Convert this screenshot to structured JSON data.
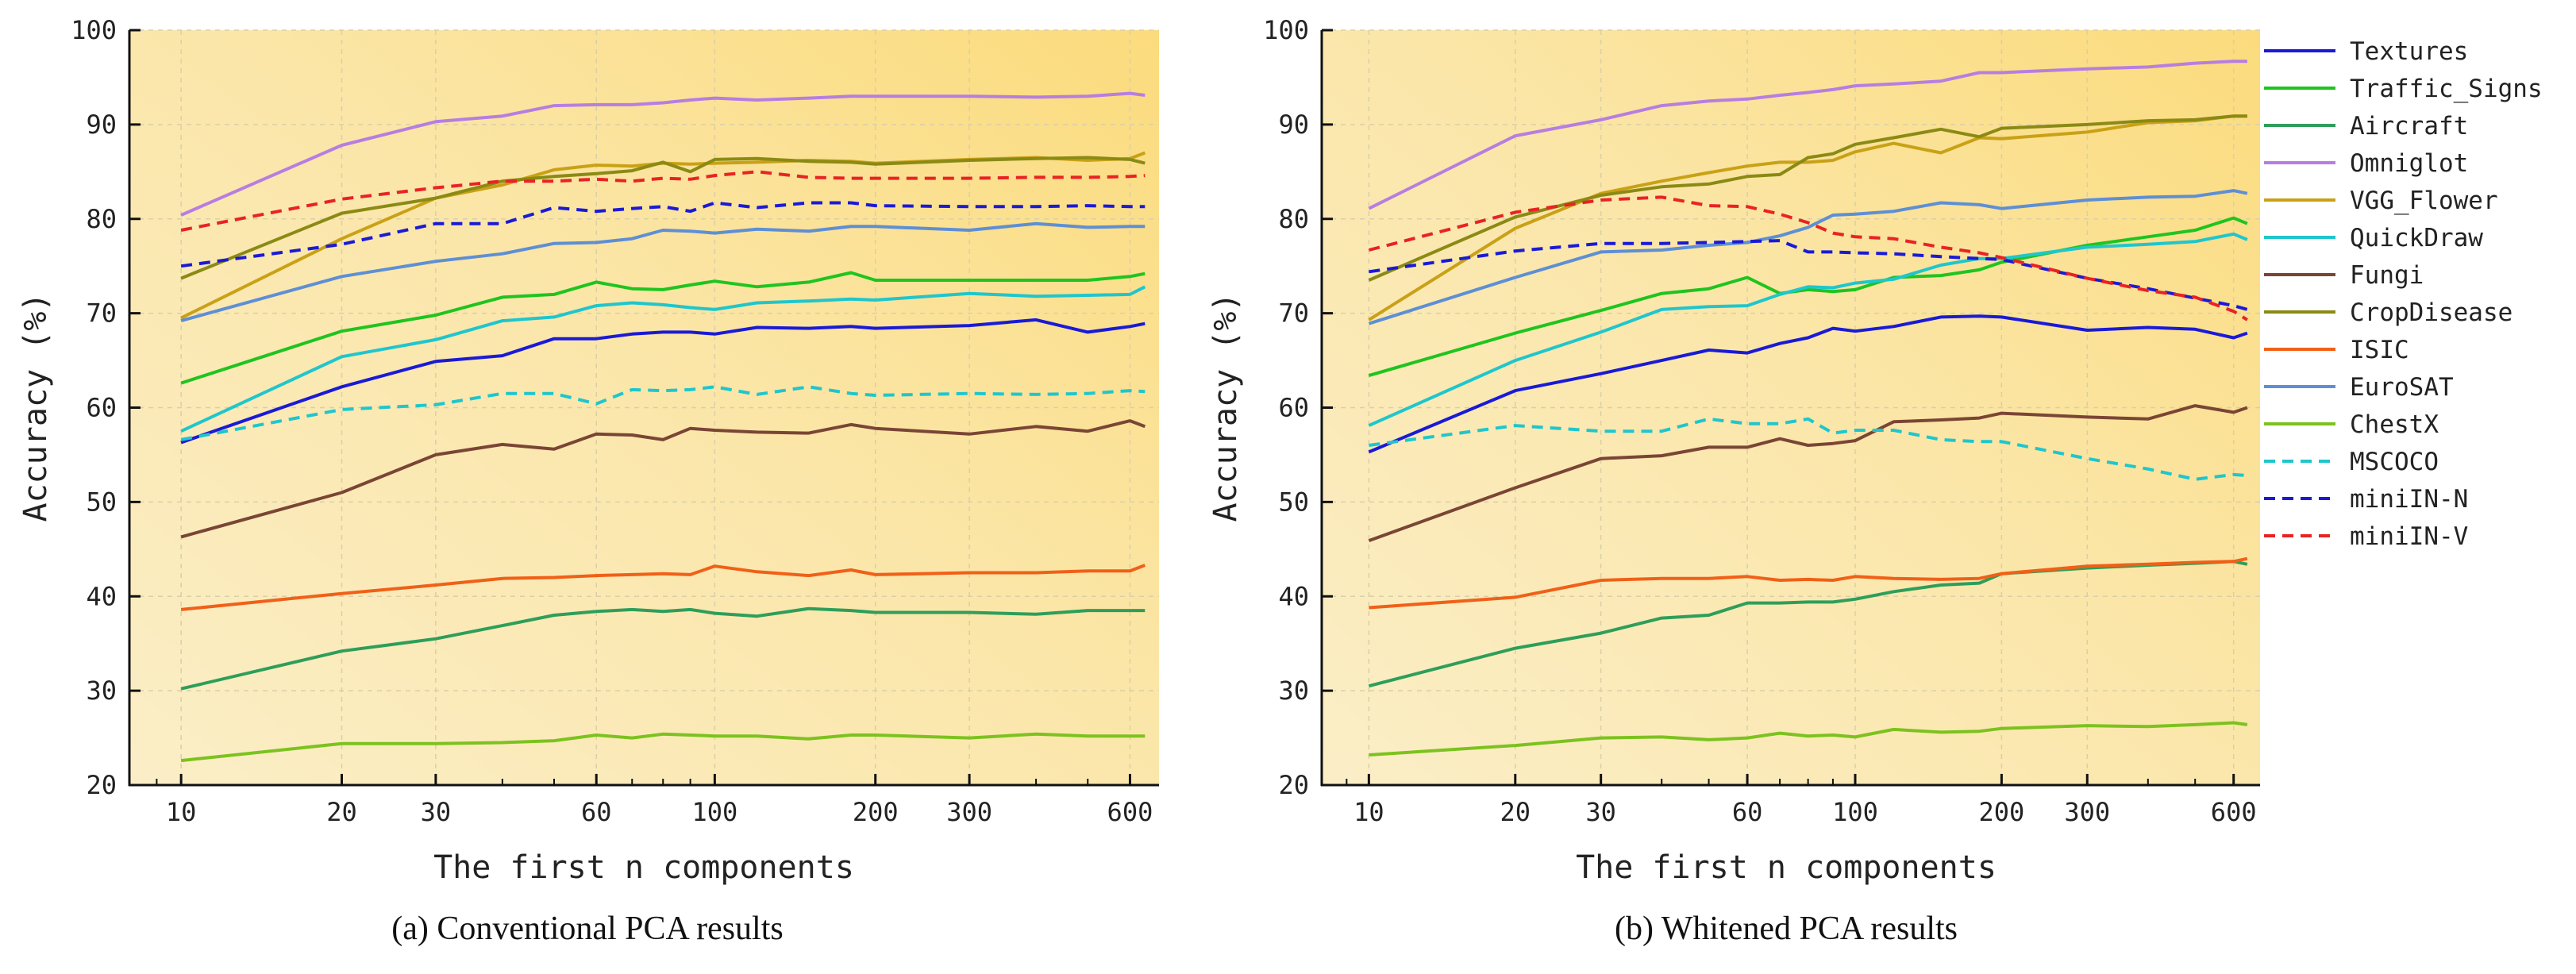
{
  "chart_data": [
    {
      "type": "line",
      "title": "(a) Conventional PCA results",
      "xlabel": "The first n components",
      "ylabel": "Accuracy (%)",
      "xscale": "log",
      "xlim": [
        8,
        680
      ],
      "ylim": [
        20,
        100
      ],
      "xticks": [
        10,
        20,
        30,
        60,
        100,
        200,
        300,
        600
      ],
      "yticks": [
        20,
        30,
        40,
        50,
        60,
        70,
        80,
        90,
        100
      ],
      "grid": true,
      "x": [
        10,
        20,
        30,
        40,
        50,
        60,
        70,
        80,
        90,
        100,
        120,
        150,
        180,
        200,
        300,
        400,
        500,
        600,
        640
      ],
      "series": [
        {
          "name": "Textures",
          "color": "#1a1ad6",
          "dashed": false,
          "values": [
            56.3,
            62.2,
            64.9,
            65.5,
            67.3,
            67.3,
            67.8,
            68,
            68,
            67.8,
            68.5,
            68.4,
            68.6,
            68.4,
            68.7,
            69.3,
            68,
            68.6,
            68.9
          ]
        },
        {
          "name": "Traffic_Signs",
          "color": "#1fc41f",
          "dashed": false,
          "values": [
            62.6,
            68.1,
            69.8,
            71.7,
            72,
            73.3,
            72.6,
            72.5,
            73,
            73.4,
            72.8,
            73.3,
            74.3,
            73.5,
            73.5,
            73.5,
            73.5,
            73.9,
            74.2
          ]
        },
        {
          "name": "Aircraft",
          "color": "#2e9e5a",
          "dashed": false,
          "values": [
            30.2,
            34.2,
            35.5,
            36.9,
            38,
            38.4,
            38.6,
            38.4,
            38.6,
            38.2,
            37.9,
            38.7,
            38.5,
            38.3,
            38.3,
            38.1,
            38.5,
            38.5,
            38.5
          ]
        },
        {
          "name": "Omniglot",
          "color": "#b77ee0",
          "dashed": false,
          "values": [
            80.4,
            87.8,
            90.3,
            90.9,
            92,
            92.1,
            92.1,
            92.3,
            92.6,
            92.8,
            92.6,
            92.8,
            93,
            93,
            93,
            92.9,
            93,
            93.3,
            93.1
          ]
        },
        {
          "name": "VGG_Flower",
          "color": "#c9a116",
          "dashed": false,
          "values": [
            69.5,
            77.9,
            82.2,
            83.6,
            85.2,
            85.7,
            85.6,
            85.9,
            85.8,
            85.9,
            86,
            86.2,
            86.1,
            85.9,
            86.3,
            86.5,
            86.2,
            86.4,
            87
          ]
        },
        {
          "name": "QuickDraw",
          "color": "#1fc6cc",
          "dashed": false,
          "values": [
            57.5,
            65.4,
            67.2,
            69.2,
            69.6,
            70.8,
            71.1,
            70.9,
            70.6,
            70.4,
            71.1,
            71.3,
            71.5,
            71.4,
            72.1,
            71.8,
            71.9,
            72,
            72.8
          ]
        },
        {
          "name": "Fungi",
          "color": "#7a4535",
          "dashed": false,
          "values": [
            46.3,
            51,
            55,
            56.1,
            55.6,
            57.2,
            57.1,
            56.6,
            57.8,
            57.6,
            57.4,
            57.3,
            58.2,
            57.8,
            57.2,
            58,
            57.5,
            58.6,
            58
          ]
        },
        {
          "name": "CropDisease",
          "color": "#8a8a14",
          "dashed": false,
          "values": [
            73.7,
            80.6,
            82.2,
            84,
            84.5,
            84.8,
            85.1,
            86,
            85,
            86.3,
            86.4,
            86.1,
            86,
            85.8,
            86.2,
            86.4,
            86.5,
            86.3,
            85.9
          ]
        },
        {
          "name": "ISIC",
          "color": "#f06018",
          "dashed": false,
          "values": [
            38.6,
            40.3,
            41.2,
            41.9,
            42,
            42.2,
            42.3,
            42.4,
            42.3,
            43.2,
            42.6,
            42.2,
            42.8,
            42.3,
            42.5,
            42.5,
            42.7,
            42.7,
            43.3
          ]
        },
        {
          "name": "EuroSAT",
          "color": "#5e8fd4",
          "dashed": false,
          "values": [
            69.2,
            73.9,
            75.5,
            76.3,
            77.4,
            77.5,
            77.9,
            78.8,
            78.7,
            78.5,
            78.9,
            78.7,
            79.2,
            79.2,
            78.8,
            79.5,
            79.1,
            79.2,
            79.2
          ]
        },
        {
          "name": "ChestX",
          "color": "#7cc21f",
          "dashed": false,
          "values": [
            22.6,
            24.4,
            24.4,
            24.5,
            24.7,
            25.3,
            25,
            25.4,
            25.3,
            25.2,
            25.2,
            24.9,
            25.3,
            25.3,
            25,
            25.4,
            25.2,
            25.2,
            25.2
          ]
        },
        {
          "name": "MSCOCO",
          "color": "#1fc6cc",
          "dashed": true,
          "values": [
            56.6,
            59.8,
            60.3,
            61.5,
            61.5,
            60.4,
            61.9,
            61.8,
            61.9,
            62.2,
            61.4,
            62.2,
            61.5,
            61.3,
            61.5,
            61.4,
            61.5,
            61.8,
            61.7
          ]
        },
        {
          "name": "miniIN-N",
          "color": "#1a1ad6",
          "dashed": true,
          "values": [
            75,
            77.3,
            79.5,
            79.5,
            81.2,
            80.8,
            81.1,
            81.3,
            80.8,
            81.7,
            81.2,
            81.7,
            81.7,
            81.4,
            81.3,
            81.3,
            81.4,
            81.3,
            81.3
          ]
        },
        {
          "name": "miniIN-V",
          "color": "#e82323",
          "dashed": true,
          "values": [
            78.8,
            82.1,
            83.3,
            84,
            84,
            84.2,
            84,
            84.3,
            84.2,
            84.6,
            85,
            84.4,
            84.3,
            84.3,
            84.3,
            84.4,
            84.4,
            84.5,
            84.6
          ]
        }
      ]
    },
    {
      "type": "line",
      "title": "(b) Whitened PCA results",
      "xlabel": "The first n components",
      "ylabel": "Accuracy (%)",
      "xscale": "log",
      "xlim": [
        8,
        680
      ],
      "ylim": [
        20,
        100
      ],
      "xticks": [
        10,
        20,
        30,
        60,
        100,
        200,
        300,
        600
      ],
      "yticks": [
        20,
        30,
        40,
        50,
        60,
        70,
        80,
        90,
        100
      ],
      "grid": true,
      "x": [
        10,
        20,
        30,
        40,
        50,
        60,
        70,
        80,
        90,
        100,
        120,
        150,
        180,
        200,
        300,
        400,
        500,
        600,
        640
      ],
      "series": [
        {
          "name": "Textures",
          "color": "#1a1ad6",
          "dashed": false,
          "values": [
            55.3,
            61.8,
            63.6,
            65,
            66.1,
            65.8,
            66.8,
            67.4,
            68.4,
            68.1,
            68.6,
            69.6,
            69.7,
            69.6,
            68.2,
            68.5,
            68.3,
            67.4,
            67.9
          ]
        },
        {
          "name": "Traffic_Signs",
          "color": "#1fc41f",
          "dashed": false,
          "values": [
            63.4,
            67.9,
            70.3,
            72.1,
            72.6,
            73.8,
            72.1,
            72.5,
            72.3,
            72.5,
            73.8,
            74,
            74.6,
            75.4,
            77.2,
            78.1,
            78.8,
            80.1,
            79.5
          ]
        },
        {
          "name": "Aircraft",
          "color": "#2e9e5a",
          "dashed": false,
          "values": [
            30.5,
            34.5,
            36.1,
            37.7,
            38,
            39.3,
            39.3,
            39.4,
            39.4,
            39.7,
            40.5,
            41.2,
            41.4,
            42.4,
            43,
            43.3,
            43.5,
            43.7,
            43.4
          ]
        },
        {
          "name": "Omniglot",
          "color": "#b77ee0",
          "dashed": false,
          "values": [
            81.1,
            88.8,
            90.5,
            92,
            92.5,
            92.7,
            93.1,
            93.4,
            93.7,
            94.1,
            94.3,
            94.6,
            95.5,
            95.5,
            95.9,
            96.1,
            96.5,
            96.7,
            96.7
          ]
        },
        {
          "name": "VGG_Flower",
          "color": "#c9a116",
          "dashed": false,
          "values": [
            69.3,
            79,
            82.7,
            84,
            84.9,
            85.6,
            86,
            86,
            86.2,
            87.1,
            88,
            87,
            88.6,
            88.5,
            89.2,
            90.2,
            90.4,
            90.9,
            90.9
          ]
        },
        {
          "name": "QuickDraw",
          "color": "#1fc6cc",
          "dashed": false,
          "values": [
            58.1,
            65,
            68,
            70.4,
            70.7,
            70.8,
            72,
            72.8,
            72.7,
            73.2,
            73.6,
            75.1,
            75.8,
            75.8,
            77,
            77.3,
            77.6,
            78.4,
            77.8
          ]
        },
        {
          "name": "Fungi",
          "color": "#7a4535",
          "dashed": false,
          "values": [
            45.9,
            51.5,
            54.6,
            54.9,
            55.8,
            55.8,
            56.7,
            56,
            56.2,
            56.5,
            58.5,
            58.7,
            58.9,
            59.4,
            59,
            58.8,
            60.2,
            59.5,
            60
          ]
        },
        {
          "name": "CropDisease",
          "color": "#8a8a14",
          "dashed": false,
          "values": [
            73.5,
            80.2,
            82.5,
            83.4,
            83.7,
            84.5,
            84.7,
            86.5,
            86.9,
            87.9,
            88.6,
            89.5,
            88.7,
            89.6,
            90,
            90.4,
            90.5,
            90.9,
            90.9
          ]
        },
        {
          "name": "ISIC",
          "color": "#f06018",
          "dashed": false,
          "values": [
            38.8,
            39.9,
            41.7,
            41.9,
            41.9,
            42.1,
            41.7,
            41.8,
            41.7,
            42.1,
            41.9,
            41.8,
            41.9,
            42.4,
            43.2,
            43.4,
            43.6,
            43.7,
            44
          ]
        },
        {
          "name": "EuroSAT",
          "color": "#5e8fd4",
          "dashed": false,
          "values": [
            68.9,
            73.8,
            76.5,
            76.7,
            77.2,
            77.5,
            78.2,
            79.1,
            80.4,
            80.5,
            80.8,
            81.7,
            81.5,
            81.1,
            82,
            82.3,
            82.4,
            83,
            82.7
          ]
        },
        {
          "name": "ChestX",
          "color": "#7cc21f",
          "dashed": false,
          "values": [
            23.2,
            24.2,
            25,
            25.1,
            24.8,
            25,
            25.5,
            25.2,
            25.3,
            25.1,
            25.9,
            25.6,
            25.7,
            26,
            26.3,
            26.2,
            26.4,
            26.6,
            26.4
          ]
        },
        {
          "name": "MSCOCO",
          "color": "#1fc6cc",
          "dashed": true,
          "values": [
            56,
            58.1,
            57.5,
            57.5,
            58.8,
            58.3,
            58.3,
            58.8,
            57.3,
            57.6,
            57.6,
            56.6,
            56.4,
            56.4,
            54.6,
            53.5,
            52.4,
            52.9,
            52.8
          ]
        },
        {
          "name": "miniIN-N",
          "color": "#1a1ad6",
          "dashed": true,
          "values": [
            74.4,
            76.6,
            77.4,
            77.4,
            77.5,
            77.6,
            77.7,
            76.5,
            76.5,
            76.4,
            76.3,
            76,
            75.8,
            75.7,
            73.7,
            72.6,
            71.6,
            70.8,
            70.4
          ]
        },
        {
          "name": "miniIN-V",
          "color": "#e82323",
          "dashed": true,
          "values": [
            76.7,
            80.7,
            82,
            82.3,
            81.4,
            81.3,
            80.5,
            79.6,
            78.5,
            78.1,
            77.9,
            77,
            76.4,
            75.9,
            73.7,
            72.4,
            71.7,
            70.2,
            69.3
          ]
        }
      ]
    }
  ]
}
